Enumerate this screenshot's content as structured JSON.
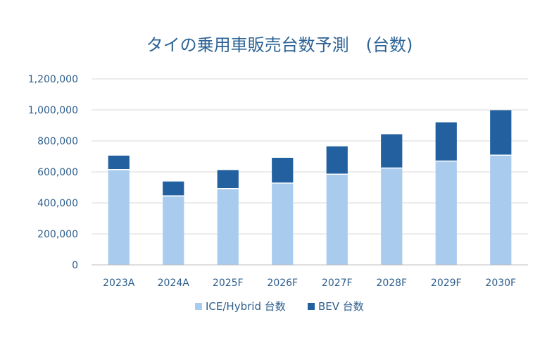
{
  "chart_data": {
    "type": "bar",
    "stacked": true,
    "title": "タイの乗用車販売台数予測　(台数)",
    "categories": [
      "2023A",
      "2024A",
      "2025F",
      "2026F",
      "2027F",
      "2028F",
      "2029F",
      "2030F"
    ],
    "series": [
      {
        "name": "ICE/Hybrid 台数",
        "color": "#A9CBEE",
        "values": [
          615000,
          445000,
          492000,
          528000,
          585000,
          625000,
          670000,
          708000
        ]
      },
      {
        "name": "BEV 台数",
        "color": "#2360A0",
        "values": [
          90000,
          93000,
          120000,
          163000,
          180000,
          218000,
          250000,
          290000
        ]
      }
    ],
    "ylim": [
      0,
      1200000
    ],
    "yticks": [
      "0",
      "200,000",
      "400,000",
      "600,000",
      "800,000",
      "1,000,000",
      "1,200,000"
    ],
    "xlabel": "",
    "ylabel": "",
    "grid": true,
    "legend_position": "bottom"
  }
}
